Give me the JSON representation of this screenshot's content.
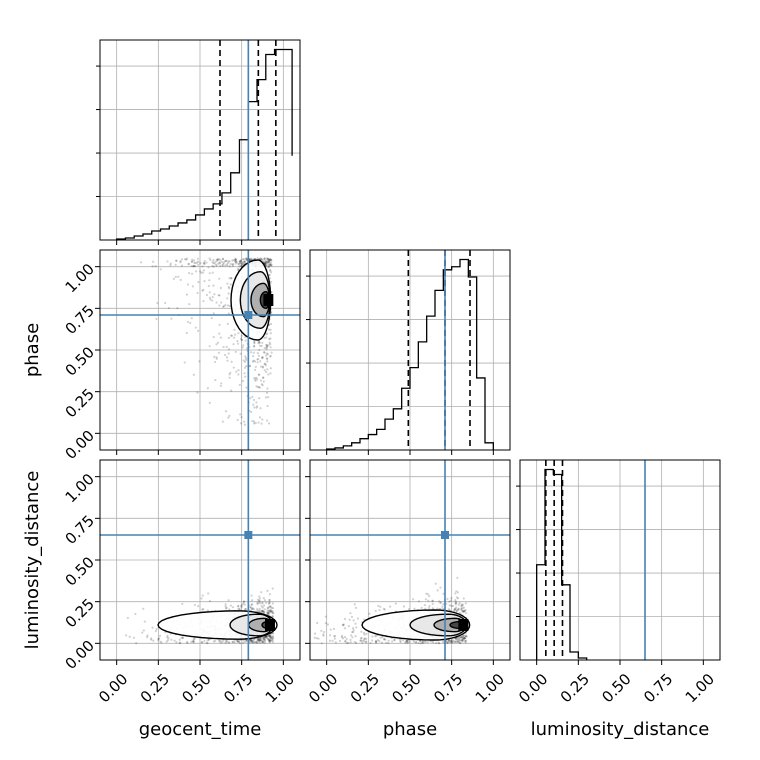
{
  "chart_data": {
    "type": "corner",
    "parameters": [
      "geocent_time",
      "phase",
      "luminosity_distance"
    ],
    "axis_labels": {
      "x": [
        "geocent_time",
        "phase",
        "luminosity_distance"
      ],
      "y": [
        "",
        "phase",
        "luminosity_distance"
      ]
    },
    "tick_values": [
      0.0,
      0.25,
      0.5,
      0.75,
      1.0
    ],
    "tick_labels": [
      "0.00",
      "0.25",
      "0.50",
      "0.75",
      "1.00"
    ],
    "axis_range": [
      -0.1,
      1.1
    ],
    "truth_color": "#4682b4",
    "grid": true,
    "truths": {
      "geocent_time": 0.79,
      "phase": 0.71,
      "luminosity_distance": 0.65
    },
    "histograms": [
      {
        "parameter": "geocent_time",
        "bin_edges": [
          0.0,
          0.0526,
          0.1053,
          0.1579,
          0.2105,
          0.2632,
          0.3158,
          0.3684,
          0.4211,
          0.4737,
          0.5263,
          0.5789,
          0.6316,
          0.6842,
          0.7368,
          0.7895,
          0.8421,
          0.8947,
          0.9474,
          1.0526
        ],
        "counts": [
          1,
          2,
          4,
          6,
          9,
          11,
          14,
          17,
          20,
          25,
          31,
          36,
          47,
          67,
          100,
          138,
          160,
          185,
          190,
          84
        ],
        "quantiles": [
          0.62,
          0.85,
          0.955
        ]
      },
      {
        "parameter": "phase",
        "bin_edges": [
          0.0,
          0.05,
          0.1,
          0.15,
          0.2,
          0.25,
          0.3,
          0.35,
          0.4,
          0.45,
          0.5,
          0.55,
          0.6,
          0.65,
          0.7,
          0.75,
          0.8,
          0.85,
          0.9,
          0.95,
          1.0
        ],
        "counts": [
          1,
          2,
          4,
          7,
          11,
          15,
          20,
          30,
          40,
          60,
          80,
          105,
          130,
          155,
          175,
          178,
          185,
          168,
          70,
          7
        ],
        "quantiles": [
          0.49,
          0.71,
          0.86
        ]
      },
      {
        "parameter": "luminosity_distance",
        "bin_edges": [
          0.0,
          0.05,
          0.1,
          0.15,
          0.2,
          0.25,
          0.3
        ],
        "counts": [
          95,
          190,
          185,
          75,
          8,
          2
        ],
        "quantiles": [
          0.055,
          0.105,
          0.155
        ]
      }
    ],
    "contours_2d": [
      {
        "x": "geocent_time",
        "y": "phase",
        "peak": [
          0.91,
          0.8
        ]
      },
      {
        "x": "geocent_time",
        "y": "luminosity_distance",
        "peak": [
          0.92,
          0.11
        ]
      },
      {
        "x": "phase",
        "y": "luminosity_distance",
        "peak": [
          0.82,
          0.11
        ]
      }
    ]
  }
}
